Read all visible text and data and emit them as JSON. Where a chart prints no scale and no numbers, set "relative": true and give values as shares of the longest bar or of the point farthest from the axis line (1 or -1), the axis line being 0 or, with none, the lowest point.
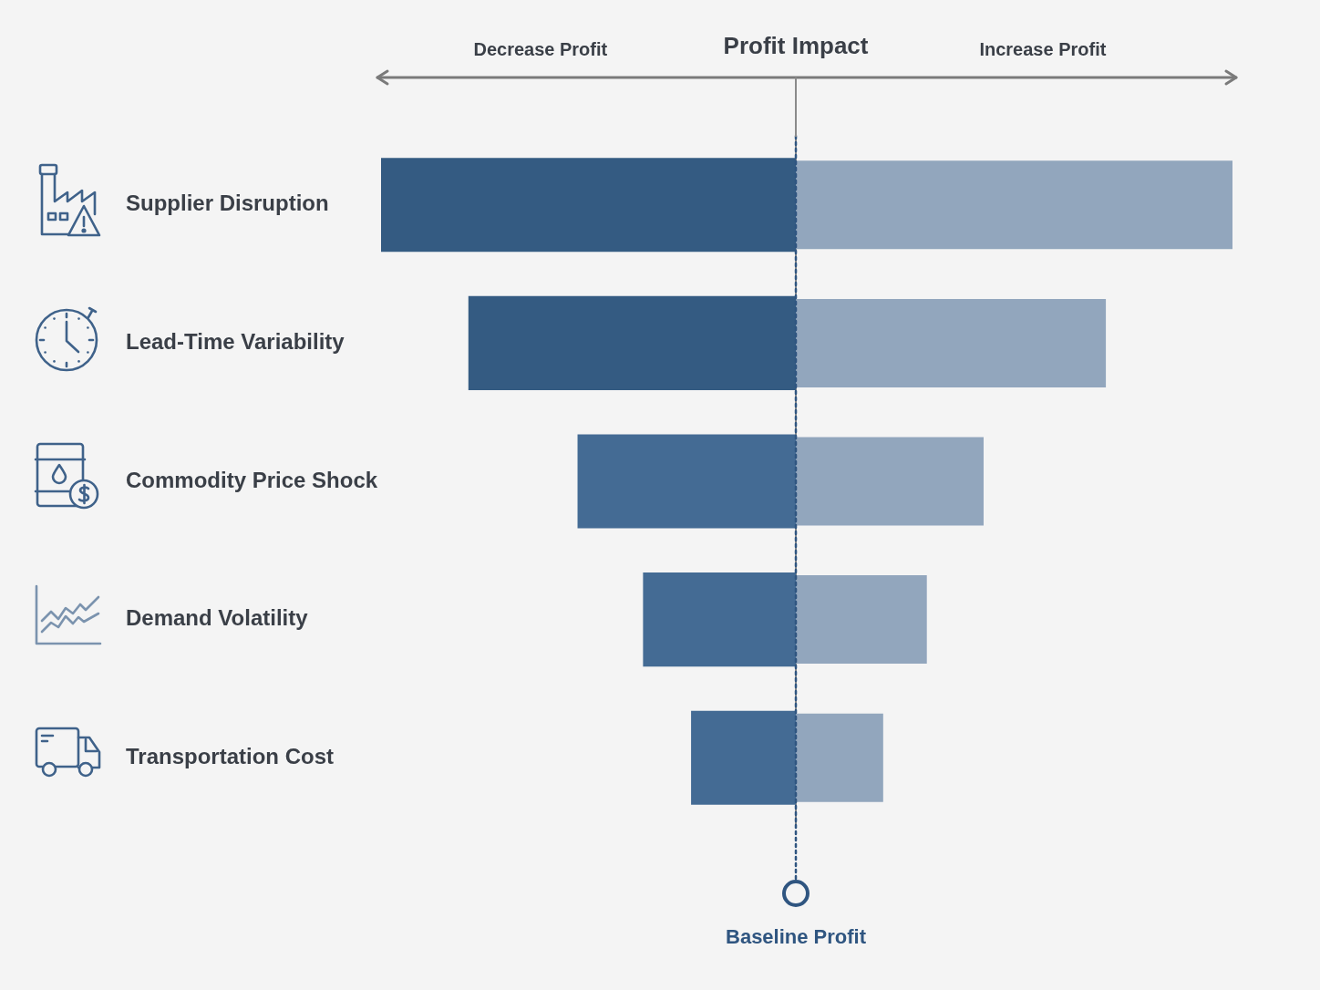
{
  "chart_data": {
    "type": "bar",
    "orientation": "horizontal",
    "relative": true,
    "title": "Profit Impact",
    "categories": [
      "Supplier Disruption",
      "Lead-Time Variability",
      "Commodity Price Shock",
      "Demand Volatility",
      "Transportation Cost"
    ],
    "series": [
      {
        "colors": [
          "#345b82",
          "#345b82",
          "#446b94",
          "#446b94",
          "#446b94"
        ],
        "values": [
          -0.95,
          -0.75,
          -0.5,
          -0.35,
          -0.24
        ]
      },
      {
        "color": "#92a6bd",
        "values": [
          1,
          0.71,
          0.43,
          0.3,
          0.2
        ]
      }
    ],
    "annotations": [
      "Decrease Profit",
      "Increase Profit"
    ],
    "ref_lines": [
      {
        "axis": "x",
        "value": 0,
        "label": "Baseline Profit",
        "color": "#2f5580",
        "line_style": "dotted"
      }
    ]
  }
}
